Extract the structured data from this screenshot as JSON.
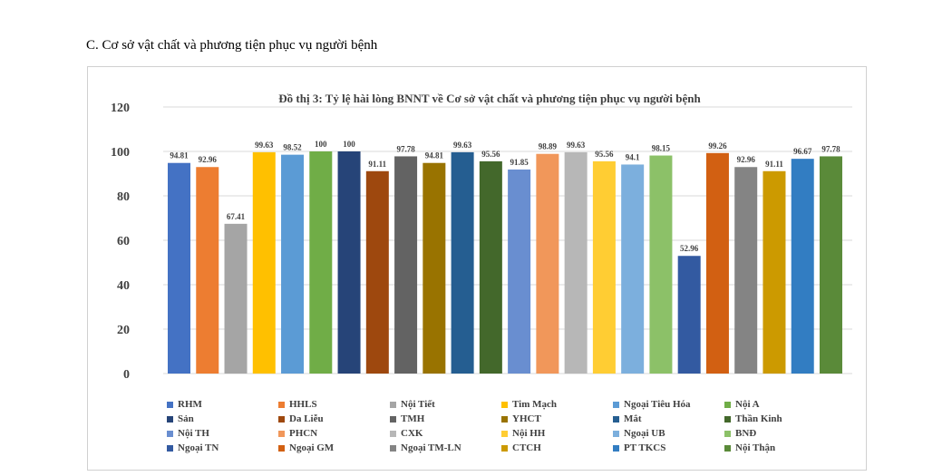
{
  "section_heading": "C. Cơ sở vật chất và phương tiện phục vụ người bệnh",
  "chart_data": {
    "type": "bar",
    "title": "Đồ thị 3: Tỷ lệ hài lòng BNNT về Cơ sở vật chất và phương tiện phục vụ người bệnh",
    "xlabel": "",
    "ylabel": "",
    "ylim": [
      0,
      120
    ],
    "yticks": [
      0,
      20,
      40,
      60,
      80,
      100,
      120
    ],
    "grid": true,
    "legend_position": "bottom",
    "series": [
      {
        "name": "RHM",
        "value": 94.81,
        "label": "94.81",
        "color": "#4472C4"
      },
      {
        "name": "HHLS",
        "value": 92.96,
        "label": "92.96",
        "color": "#ED7D31"
      },
      {
        "name": "Nội Tiết",
        "value": 67.41,
        "label": "67.41",
        "color": "#A5A5A5"
      },
      {
        "name": "Tim Mạch",
        "value": 99.63,
        "label": "99.63",
        "color": "#FFC000"
      },
      {
        "name": "Ngoại Tiêu Hóa",
        "value": 98.52,
        "label": "98.52",
        "color": "#5B9BD5"
      },
      {
        "name": "Nội A",
        "value": 100,
        "label": "100",
        "color": "#70AD47"
      },
      {
        "name": "Sản",
        "value": 100,
        "label": "100",
        "color": "#264478"
      },
      {
        "name": "Da Liễu",
        "value": 91.11,
        "label": "91.11",
        "color": "#9E480E"
      },
      {
        "name": "TMH",
        "value": 97.78,
        "label": "97.78",
        "color": "#636363"
      },
      {
        "name": "YHCT",
        "value": 94.81,
        "label": "94.81",
        "color": "#997300"
      },
      {
        "name": "Mắt",
        "value": 99.63,
        "label": "99.63",
        "color": "#255E91"
      },
      {
        "name": "Thần Kinh",
        "value": 95.56,
        "label": "95.56",
        "color": "#43682B"
      },
      {
        "name": "Nội TH",
        "value": 91.85,
        "label": "91.85",
        "color": "#698ED0"
      },
      {
        "name": "PHCN",
        "value": 98.89,
        "label": "98.89",
        "color": "#F1975A"
      },
      {
        "name": "CXK",
        "value": 99.63,
        "label": "99.63",
        "color": "#B7B7B7"
      },
      {
        "name": "Nội HH",
        "value": 95.56,
        "label": "95.56",
        "color": "#FFCD33"
      },
      {
        "name": "Ngoại UB",
        "value": 94.1,
        "label": "94.1",
        "color": "#7CAFDD"
      },
      {
        "name": "BNĐ",
        "value": 98.15,
        "label": "98.15",
        "color": "#8CC168"
      },
      {
        "name": "Ngoại TN",
        "value": 52.96,
        "label": "52.96",
        "color": "#335AA1"
      },
      {
        "name": "Ngoại GM",
        "value": 99.26,
        "label": "99.26",
        "color": "#D26012"
      },
      {
        "name": "Ngoại TM-LN",
        "value": 92.96,
        "label": "92.96",
        "color": "#848484"
      },
      {
        "name": "CTCH",
        "value": 91.11,
        "label": "91.11",
        "color": "#CC9A00"
      },
      {
        "name": "PT TKCS",
        "value": 96.67,
        "label": "96.67",
        "color": "#327DC2"
      },
      {
        "name": "Nội Thận",
        "value": 97.78,
        "label": "97.78",
        "color": "#5A8A39"
      }
    ]
  }
}
